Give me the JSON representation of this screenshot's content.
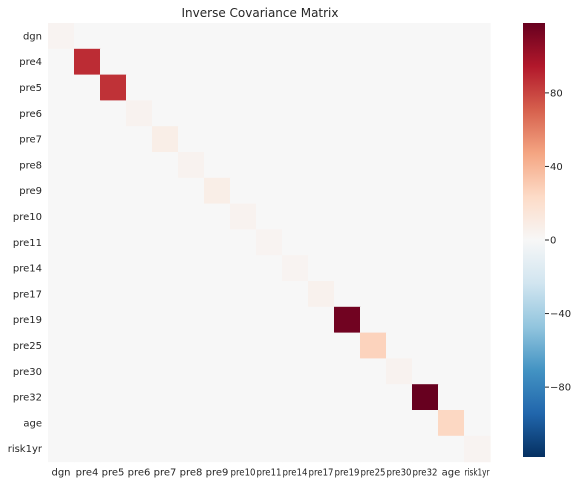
{
  "chart_data": {
    "type": "heatmap",
    "title": "Inverse Covariance Matrix",
    "xlabel": "",
    "ylabel": "",
    "labels": [
      "dgn",
      "pre4",
      "pre5",
      "pre6",
      "pre7",
      "pre8",
      "pre9",
      "pre10",
      "pre11",
      "pre14",
      "pre17",
      "pre19",
      "pre25",
      "pre30",
      "pre32",
      "age",
      "risk1yr"
    ],
    "values": [
      [
        3,
        0,
        0,
        0,
        0,
        0,
        0,
        0,
        0,
        0,
        0,
        0,
        0,
        0,
        0,
        0,
        0
      ],
      [
        0,
        88,
        0,
        0,
        0,
        0,
        0,
        0,
        0,
        0,
        0,
        0,
        0,
        0,
        0,
        0,
        0
      ],
      [
        0,
        0,
        86,
        0,
        0,
        0,
        0,
        0,
        0,
        0,
        0,
        0,
        0,
        0,
        0,
        0,
        0
      ],
      [
        0,
        0,
        0,
        4,
        0,
        0,
        0,
        0,
        0,
        0,
        0,
        0,
        0,
        0,
        0,
        0,
        0
      ],
      [
        0,
        0,
        0,
        0,
        8,
        0,
        0,
        0,
        0,
        0,
        0,
        0,
        0,
        0,
        0,
        0,
        0
      ],
      [
        0,
        0,
        0,
        0,
        0,
        4,
        0,
        0,
        0,
        0,
        0,
        0,
        0,
        0,
        0,
        0,
        0
      ],
      [
        0,
        0,
        0,
        0,
        0,
        0,
        8,
        0,
        0,
        0,
        0,
        0,
        0,
        0,
        0,
        0,
        0
      ],
      [
        0,
        0,
        0,
        0,
        0,
        0,
        0,
        4,
        0,
        0,
        0,
        0,
        0,
        0,
        0,
        0,
        0
      ],
      [
        0,
        0,
        0,
        0,
        0,
        0,
        0,
        0,
        3,
        0,
        0,
        0,
        0,
        0,
        0,
        0,
        0
      ],
      [
        0,
        0,
        0,
        0,
        0,
        0,
        0,
        0,
        0,
        3,
        0,
        0,
        0,
        0,
        0,
        0,
        0
      ],
      [
        0,
        0,
        0,
        0,
        0,
        0,
        0,
        0,
        0,
        0,
        5,
        0,
        0,
        0,
        0,
        0,
        0
      ],
      [
        0,
        0,
        0,
        0,
        0,
        0,
        0,
        0,
        0,
        0,
        0,
        115,
        0,
        0,
        0,
        0,
        0
      ],
      [
        0,
        0,
        0,
        0,
        0,
        0,
        0,
        0,
        0,
        0,
        0,
        0,
        27,
        0,
        0,
        0,
        0
      ],
      [
        0,
        0,
        0,
        0,
        0,
        0,
        0,
        0,
        0,
        0,
        0,
        0,
        0,
        4,
        0,
        0,
        0
      ],
      [
        0,
        0,
        0,
        0,
        0,
        0,
        0,
        0,
        0,
        0,
        0,
        0,
        0,
        0,
        118,
        0,
        0
      ],
      [
        0,
        0,
        0,
        0,
        0,
        0,
        0,
        0,
        0,
        0,
        0,
        0,
        0,
        0,
        0,
        25,
        0
      ],
      [
        0,
        0,
        0,
        0,
        0,
        0,
        0,
        0,
        0,
        0,
        0,
        0,
        0,
        0,
        0,
        0,
        3
      ]
    ],
    "vmin": -118,
    "vmax": 118,
    "colormap": "RdBu_r",
    "colorbar_ticks": [
      -80,
      -40,
      0,
      40,
      80
    ],
    "colorbar_stops": [
      "#053061",
      "#2166ac",
      "#4393c3",
      "#92c5de",
      "#d1e5f0",
      "#f7f7f7",
      "#fddbc7",
      "#f4a582",
      "#d6604d",
      "#b2182b",
      "#67001f"
    ],
    "grid": false
  }
}
